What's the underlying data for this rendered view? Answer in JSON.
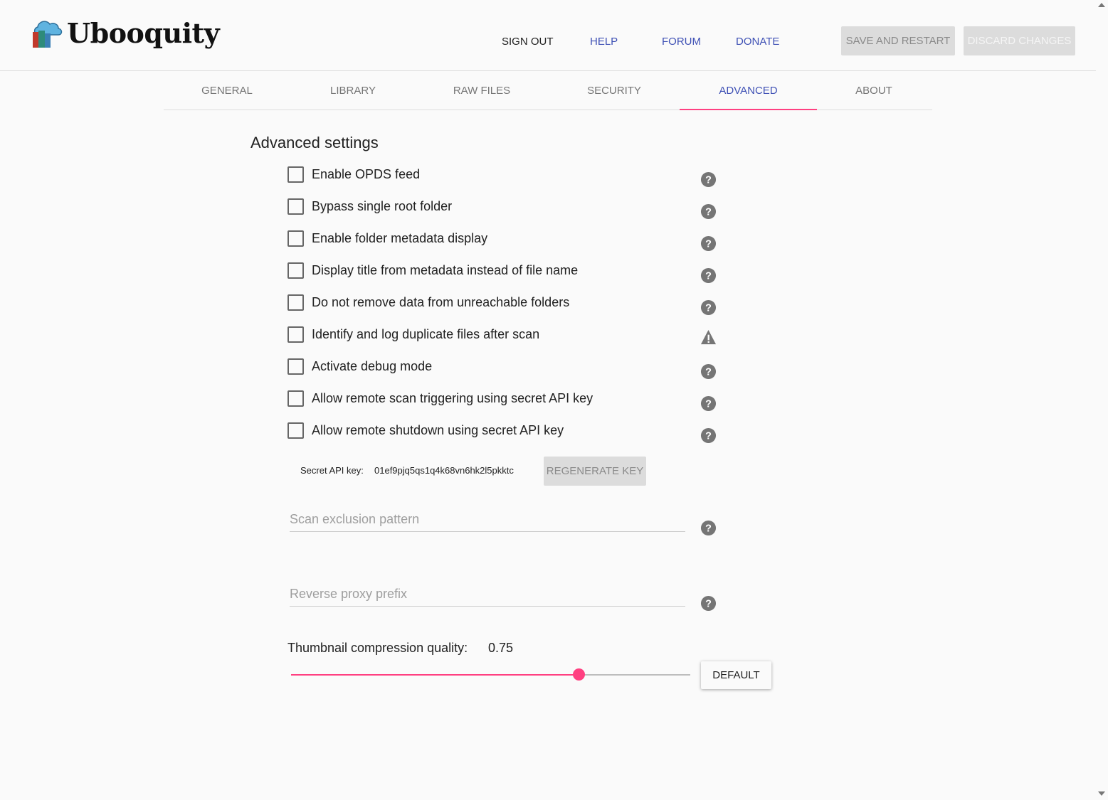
{
  "app": {
    "title": "Ubooquity"
  },
  "nav": {
    "sign_out": "SIGN OUT",
    "help": "HELP",
    "forum": "FORUM",
    "donate": "DONATE",
    "save_restart": "SAVE AND RESTART",
    "discard": "DISCARD CHANGES"
  },
  "tabs": [
    {
      "label": "GENERAL"
    },
    {
      "label": "LIBRARY"
    },
    {
      "label": "RAW FILES"
    },
    {
      "label": "SECURITY"
    },
    {
      "label": "ADVANCED",
      "active": true
    },
    {
      "label": "ABOUT"
    }
  ],
  "section_title": "Advanced settings",
  "options": [
    {
      "label": "Enable OPDS feed",
      "checked": false,
      "icon": "help-icon"
    },
    {
      "label": "Bypass single root folder",
      "checked": false,
      "icon": "help-icon"
    },
    {
      "label": "Enable folder metadata display",
      "checked": false,
      "icon": "help-icon"
    },
    {
      "label": "Display title from metadata instead of file name",
      "checked": false,
      "icon": "help-icon"
    },
    {
      "label": "Do not remove data from unreachable folders",
      "checked": false,
      "icon": "help-icon"
    },
    {
      "label": "Identify and log duplicate files after scan",
      "checked": false,
      "icon": "warning-icon"
    },
    {
      "label": "Activate debug mode",
      "checked": false,
      "icon": "help-icon"
    },
    {
      "label": "Allow remote scan triggering using secret API key",
      "checked": false,
      "icon": "help-icon"
    },
    {
      "label": "Allow remote shutdown using secret API key",
      "checked": false,
      "icon": "help-icon"
    }
  ],
  "api_key": {
    "label": "Secret API key:",
    "value": "01ef9pjq5qs1q4k68vn6hk2l5pkktc",
    "button": "REGENERATE KEY"
  },
  "scan_exclusion": {
    "placeholder": "Scan exclusion pattern",
    "value": ""
  },
  "reverse_proxy": {
    "placeholder": "Reverse proxy prefix",
    "value": ""
  },
  "thumbnail": {
    "label": "Thumbnail compression quality:",
    "value": "0.75",
    "fill_fraction": 0.72,
    "default_button": "DEFAULT"
  },
  "colors": {
    "accent": "#ff4081",
    "primary": "#3f51b5"
  }
}
